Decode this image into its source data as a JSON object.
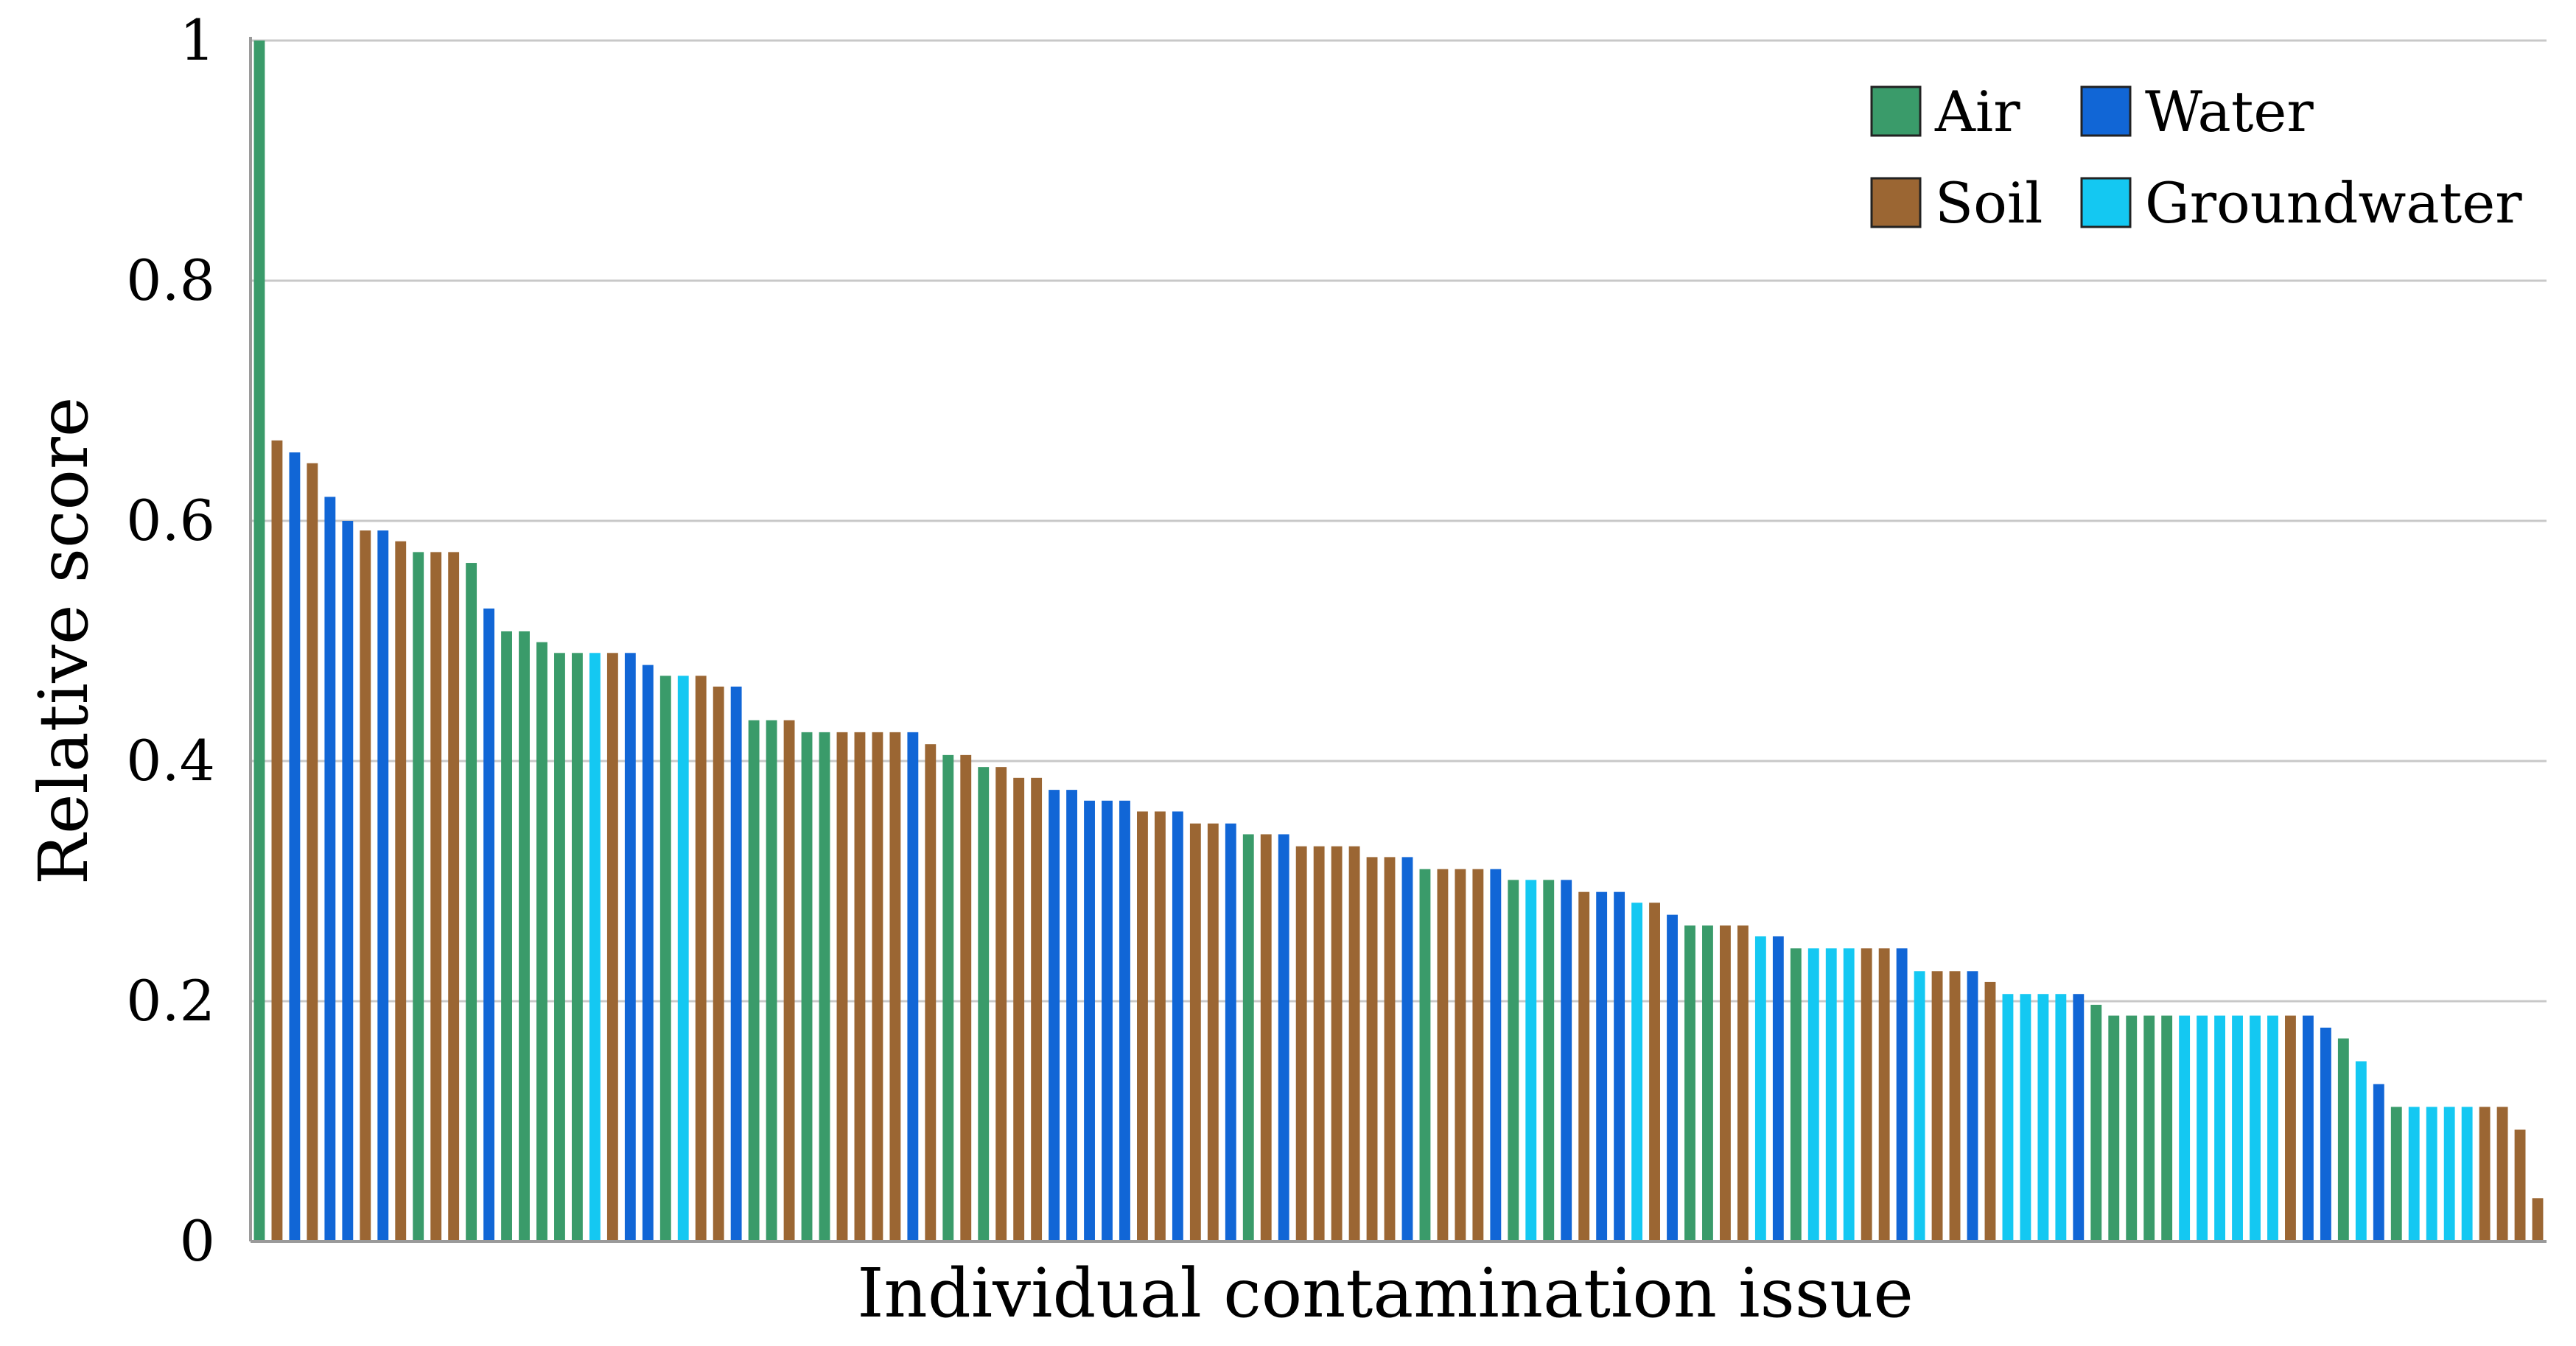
{
  "chart_data": {
    "type": "bar",
    "title": "",
    "xlabel": "Individual contamination issue",
    "ylabel": "Relative score",
    "ylim": [
      0,
      1
    ],
    "yticks": [
      {
        "value": 0,
        "label": "0"
      },
      {
        "value": 0.2,
        "label": "0.2"
      },
      {
        "value": 0.4,
        "label": "0.4"
      },
      {
        "value": 0.6,
        "label": "0.6"
      },
      {
        "value": 0.8,
        "label": "0.8"
      },
      {
        "value": 1,
        "label": "1"
      }
    ],
    "grid": true,
    "legend_position": "top-right",
    "series": [
      {
        "name": "Air",
        "color": "#3a9b6a"
      },
      {
        "name": "Water",
        "color": "#1166d6"
      },
      {
        "name": "Soil",
        "color": "#9b6633"
      },
      {
        "name": "Groundwater",
        "color": "#14c8f2"
      }
    ],
    "bars": [
      {
        "series": "Air",
        "value": 1.0
      },
      {
        "series": "Soil",
        "value": 0.667
      },
      {
        "series": "Water",
        "value": 0.657
      },
      {
        "series": "Soil",
        "value": 0.648
      },
      {
        "series": "Water",
        "value": 0.62
      },
      {
        "series": "Water",
        "value": 0.6
      },
      {
        "series": "Soil",
        "value": 0.592
      },
      {
        "series": "Water",
        "value": 0.592
      },
      {
        "series": "Soil",
        "value": 0.583
      },
      {
        "series": "Air",
        "value": 0.574
      },
      {
        "series": "Soil",
        "value": 0.574
      },
      {
        "series": "Soil",
        "value": 0.574
      },
      {
        "series": "Air",
        "value": 0.565
      },
      {
        "series": "Water",
        "value": 0.527
      },
      {
        "series": "Air",
        "value": 0.508
      },
      {
        "series": "Air",
        "value": 0.508
      },
      {
        "series": "Air",
        "value": 0.499
      },
      {
        "series": "Air",
        "value": 0.49
      },
      {
        "series": "Air",
        "value": 0.49
      },
      {
        "series": "Groundwater",
        "value": 0.49
      },
      {
        "series": "Soil",
        "value": 0.49
      },
      {
        "series": "Water",
        "value": 0.49
      },
      {
        "series": "Water",
        "value": 0.48
      },
      {
        "series": "Air",
        "value": 0.471
      },
      {
        "series": "Groundwater",
        "value": 0.471
      },
      {
        "series": "Soil",
        "value": 0.471
      },
      {
        "series": "Soil",
        "value": 0.462
      },
      {
        "series": "Water",
        "value": 0.462
      },
      {
        "series": "Air",
        "value": 0.434
      },
      {
        "series": "Air",
        "value": 0.434
      },
      {
        "series": "Soil",
        "value": 0.434
      },
      {
        "series": "Air",
        "value": 0.424
      },
      {
        "series": "Air",
        "value": 0.424
      },
      {
        "series": "Soil",
        "value": 0.424
      },
      {
        "series": "Soil",
        "value": 0.424
      },
      {
        "series": "Soil",
        "value": 0.424
      },
      {
        "series": "Soil",
        "value": 0.424
      },
      {
        "series": "Water",
        "value": 0.424
      },
      {
        "series": "Soil",
        "value": 0.414
      },
      {
        "series": "Air",
        "value": 0.405
      },
      {
        "series": "Soil",
        "value": 0.405
      },
      {
        "series": "Air",
        "value": 0.395
      },
      {
        "series": "Soil",
        "value": 0.395
      },
      {
        "series": "Soil",
        "value": 0.386
      },
      {
        "series": "Soil",
        "value": 0.386
      },
      {
        "series": "Water",
        "value": 0.376
      },
      {
        "series": "Water",
        "value": 0.376
      },
      {
        "series": "Water",
        "value": 0.367
      },
      {
        "series": "Water",
        "value": 0.367
      },
      {
        "series": "Water",
        "value": 0.367
      },
      {
        "series": "Soil",
        "value": 0.358
      },
      {
        "series": "Soil",
        "value": 0.358
      },
      {
        "series": "Water",
        "value": 0.358
      },
      {
        "series": "Soil",
        "value": 0.348
      },
      {
        "series": "Soil",
        "value": 0.348
      },
      {
        "series": "Water",
        "value": 0.348
      },
      {
        "series": "Air",
        "value": 0.339
      },
      {
        "series": "Soil",
        "value": 0.339
      },
      {
        "series": "Water",
        "value": 0.339
      },
      {
        "series": "Soil",
        "value": 0.329
      },
      {
        "series": "Soil",
        "value": 0.329
      },
      {
        "series": "Soil",
        "value": 0.329
      },
      {
        "series": "Soil",
        "value": 0.329
      },
      {
        "series": "Soil",
        "value": 0.32
      },
      {
        "series": "Soil",
        "value": 0.32
      },
      {
        "series": "Water",
        "value": 0.32
      },
      {
        "series": "Air",
        "value": 0.31
      },
      {
        "series": "Soil",
        "value": 0.31
      },
      {
        "series": "Soil",
        "value": 0.31
      },
      {
        "series": "Soil",
        "value": 0.31
      },
      {
        "series": "Water",
        "value": 0.31
      },
      {
        "series": "Air",
        "value": 0.301
      },
      {
        "series": "Groundwater",
        "value": 0.301
      },
      {
        "series": "Air",
        "value": 0.301
      },
      {
        "series": "Water",
        "value": 0.301
      },
      {
        "series": "Soil",
        "value": 0.291
      },
      {
        "series": "Water",
        "value": 0.291
      },
      {
        "series": "Water",
        "value": 0.291
      },
      {
        "series": "Groundwater",
        "value": 0.282
      },
      {
        "series": "Soil",
        "value": 0.282
      },
      {
        "series": "Water",
        "value": 0.272
      },
      {
        "series": "Air",
        "value": 0.263
      },
      {
        "series": "Air",
        "value": 0.263
      },
      {
        "series": "Soil",
        "value": 0.263
      },
      {
        "series": "Soil",
        "value": 0.263
      },
      {
        "series": "Groundwater",
        "value": 0.254
      },
      {
        "series": "Water",
        "value": 0.254
      },
      {
        "series": "Air",
        "value": 0.244
      },
      {
        "series": "Groundwater",
        "value": 0.244
      },
      {
        "series": "Groundwater",
        "value": 0.244
      },
      {
        "series": "Groundwater",
        "value": 0.244
      },
      {
        "series": "Soil",
        "value": 0.244
      },
      {
        "series": "Soil",
        "value": 0.244
      },
      {
        "series": "Water",
        "value": 0.244
      },
      {
        "series": "Groundwater",
        "value": 0.225
      },
      {
        "series": "Soil",
        "value": 0.225
      },
      {
        "series": "Soil",
        "value": 0.225
      },
      {
        "series": "Water",
        "value": 0.225
      },
      {
        "series": "Soil",
        "value": 0.216
      },
      {
        "series": "Groundwater",
        "value": 0.206
      },
      {
        "series": "Groundwater",
        "value": 0.206
      },
      {
        "series": "Groundwater",
        "value": 0.206
      },
      {
        "series": "Groundwater",
        "value": 0.206
      },
      {
        "series": "Water",
        "value": 0.206
      },
      {
        "series": "Air",
        "value": 0.197
      },
      {
        "series": "Air",
        "value": 0.188
      },
      {
        "series": "Air",
        "value": 0.188
      },
      {
        "series": "Air",
        "value": 0.188
      },
      {
        "series": "Air",
        "value": 0.188
      },
      {
        "series": "Groundwater",
        "value": 0.188
      },
      {
        "series": "Groundwater",
        "value": 0.188
      },
      {
        "series": "Groundwater",
        "value": 0.188
      },
      {
        "series": "Groundwater",
        "value": 0.188
      },
      {
        "series": "Groundwater",
        "value": 0.188
      },
      {
        "series": "Groundwater",
        "value": 0.188
      },
      {
        "series": "Soil",
        "value": 0.188
      },
      {
        "series": "Water",
        "value": 0.188
      },
      {
        "series": "Water",
        "value": 0.178
      },
      {
        "series": "Air",
        "value": 0.169
      },
      {
        "series": "Groundwater",
        "value": 0.15
      },
      {
        "series": "Water",
        "value": 0.131
      },
      {
        "series": "Air",
        "value": 0.112
      },
      {
        "series": "Groundwater",
        "value": 0.112
      },
      {
        "series": "Groundwater",
        "value": 0.112
      },
      {
        "series": "Groundwater",
        "value": 0.112
      },
      {
        "series": "Groundwater",
        "value": 0.112
      },
      {
        "series": "Soil",
        "value": 0.112
      },
      {
        "series": "Soil",
        "value": 0.112
      },
      {
        "series": "Soil",
        "value": 0.093
      },
      {
        "series": "Soil",
        "value": 0.036
      }
    ]
  }
}
